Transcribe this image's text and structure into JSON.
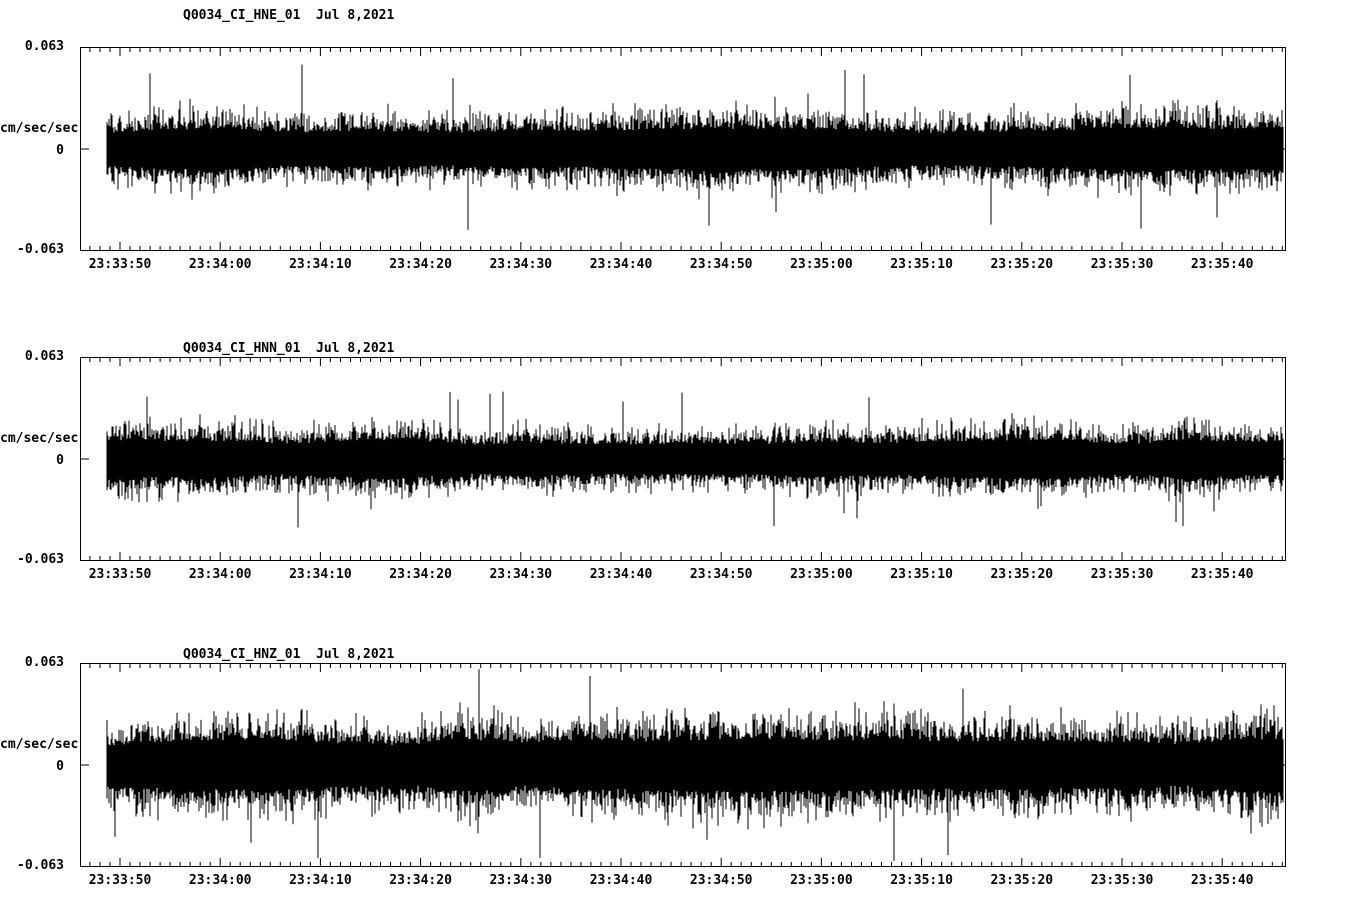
{
  "page": {
    "background": "#ffffff",
    "text_color": "#000000"
  },
  "chart_data": [
    {
      "type": "line",
      "subtype": "seismogram-waveform",
      "title": "Q0034_CI_HNE_01  Jul 8,2021",
      "ylabel": "cm/sec/sec",
      "ylim": [
        -0.063,
        0.063
      ],
      "ytick_labels": [
        "0.063",
        "0",
        "-0.063"
      ],
      "xtick_labels": [
        "23:33:50",
        "23:34:00",
        "23:34:10",
        "23:34:20",
        "23:34:30",
        "23:34:40",
        "23:34:50",
        "23:35:00",
        "23:35:10",
        "23:35:20",
        "23:35:30",
        "23:35:40"
      ],
      "x_seconds_per_tick": 10,
      "grid": false,
      "legend": "none",
      "line_color": "#000000",
      "signal": {
        "kind": "zero-mean broadband noise",
        "mean": 0,
        "typical_peak": 0.021,
        "max_peak": 0.05,
        "seed": 11
      }
    },
    {
      "type": "line",
      "subtype": "seismogram-waveform",
      "title": "Q0034_CI_HNN_01  Jul 8,2021",
      "ylabel": "cm/sec/sec",
      "ylim": [
        -0.063,
        0.063
      ],
      "ytick_labels": [
        "0.063",
        "0",
        "-0.063"
      ],
      "xtick_labels": [
        "23:33:50",
        "23:34:00",
        "23:34:10",
        "23:34:20",
        "23:34:30",
        "23:34:40",
        "23:34:50",
        "23:35:00",
        "23:35:10",
        "23:35:20",
        "23:35:30",
        "23:35:40"
      ],
      "x_seconds_per_tick": 10,
      "grid": false,
      "legend": "none",
      "line_color": "#000000",
      "signal": {
        "kind": "zero-mean broadband noise",
        "mean": 0,
        "typical_peak": 0.019,
        "max_peak": 0.042,
        "seed": 23
      }
    },
    {
      "type": "line",
      "subtype": "seismogram-waveform",
      "title": "Q0034_CI_HNZ_01  Jul 8,2021",
      "ylabel": "cm/sec/sec",
      "ylim": [
        -0.063,
        0.063
      ],
      "ytick_labels": [
        "0.063",
        "0",
        "-0.063"
      ],
      "xtick_labels": [
        "23:33:50",
        "23:34:00",
        "23:34:10",
        "23:34:20",
        "23:34:30",
        "23:34:40",
        "23:34:50",
        "23:35:00",
        "23:35:10",
        "23:35:20",
        "23:35:30",
        "23:35:40"
      ],
      "x_seconds_per_tick": 10,
      "grid": false,
      "legend": "none",
      "line_color": "#000000",
      "signal": {
        "kind": "zero-mean broadband noise",
        "mean": 0,
        "typical_peak": 0.026,
        "max_peak": 0.058,
        "seed": 37
      }
    }
  ]
}
